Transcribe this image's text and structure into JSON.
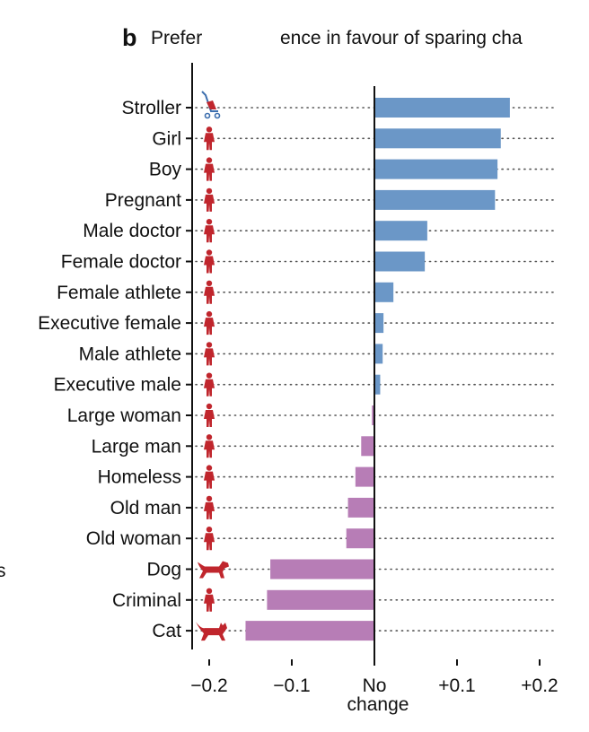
{
  "chart_data": {
    "type": "bar",
    "orientation": "horizontal",
    "panel_letter": "b",
    "title_part1": "Prefer",
    "title_part2": "ence in favour of sparing cha",
    "left_edge_fragment": "s",
    "xlabel": "",
    "ylabel": "",
    "xlim": [
      -0.22,
      0.22
    ],
    "grid": "dotted row guides",
    "legend": "none",
    "x_ticks": [
      {
        "value": -0.2,
        "label": "−0.2"
      },
      {
        "value": -0.1,
        "label": "−0.1"
      },
      {
        "value": 0,
        "label": "No",
        "label2": "change"
      },
      {
        "value": 0.1,
        "label": "+0.1"
      },
      {
        "value": 0.2,
        "label": "+0.2"
      }
    ],
    "colors": {
      "positive": "#6b97c7",
      "negative": "#b77db6",
      "icon_person": "#c0262d",
      "icon_stroller": "#3d6fae",
      "guide": "#555555",
      "axis": "#111111"
    },
    "categories": [
      {
        "label": "Stroller",
        "value": 0.164,
        "icon": "stroller-icon"
      },
      {
        "label": "Girl",
        "value": 0.153,
        "icon": "girl-icon"
      },
      {
        "label": "Boy",
        "value": 0.149,
        "icon": "boy-icon"
      },
      {
        "label": "Pregnant",
        "value": 0.146,
        "icon": "pregnant-woman-icon"
      },
      {
        "label": "Male doctor",
        "value": 0.064,
        "icon": "male-doctor-icon"
      },
      {
        "label": "Female doctor",
        "value": 0.061,
        "icon": "female-doctor-icon"
      },
      {
        "label": "Female athlete",
        "value": 0.023,
        "icon": "female-athlete-icon"
      },
      {
        "label": "Executive female",
        "value": 0.011,
        "icon": "executive-female-icon"
      },
      {
        "label": "Male athlete",
        "value": 0.01,
        "icon": "male-athlete-icon"
      },
      {
        "label": "Executive male",
        "value": 0.007,
        "icon": "executive-male-icon"
      },
      {
        "label": "Large woman",
        "value": -0.003,
        "icon": "large-woman-icon"
      },
      {
        "label": "Large man",
        "value": -0.016,
        "icon": "large-man-icon"
      },
      {
        "label": "Homeless",
        "value": -0.023,
        "icon": "homeless-person-icon"
      },
      {
        "label": "Old man",
        "value": -0.032,
        "icon": "old-man-icon"
      },
      {
        "label": "Old woman",
        "value": -0.034,
        "icon": "old-woman-icon"
      },
      {
        "label": "Dog",
        "value": -0.126,
        "icon": "dog-icon"
      },
      {
        "label": "Criminal",
        "value": -0.13,
        "icon": "criminal-icon"
      },
      {
        "label": "Cat",
        "value": -0.156,
        "icon": "cat-icon"
      }
    ]
  }
}
